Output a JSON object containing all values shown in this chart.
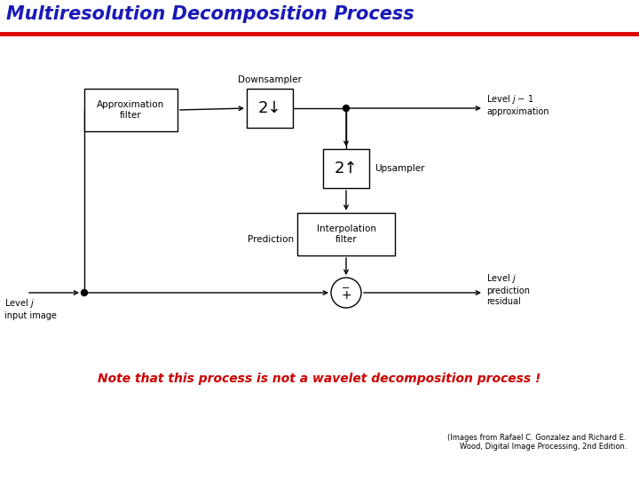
{
  "title": "Multiresolution Decomposition Process",
  "title_color": "#1a1ab8",
  "title_fontsize": 15,
  "note_text": "Note that this process is not a wavelet decomposition process !",
  "note_color": "#cc0000",
  "note_fontsize": 10,
  "citation_line1": "(Images from Rafael C. Gonzalez and Richard E.",
  "citation_line2": "Wood, Digital Image Processing, 2nd Edition.",
  "citation_fontsize": 6,
  "bg_color": "#ffffff",
  "line_color": "#000000",
  "header_line_color": "#dd0000",
  "box_facecolor": "#ffffff",
  "box_edgecolor": "#000000",
  "lw": 1.0
}
